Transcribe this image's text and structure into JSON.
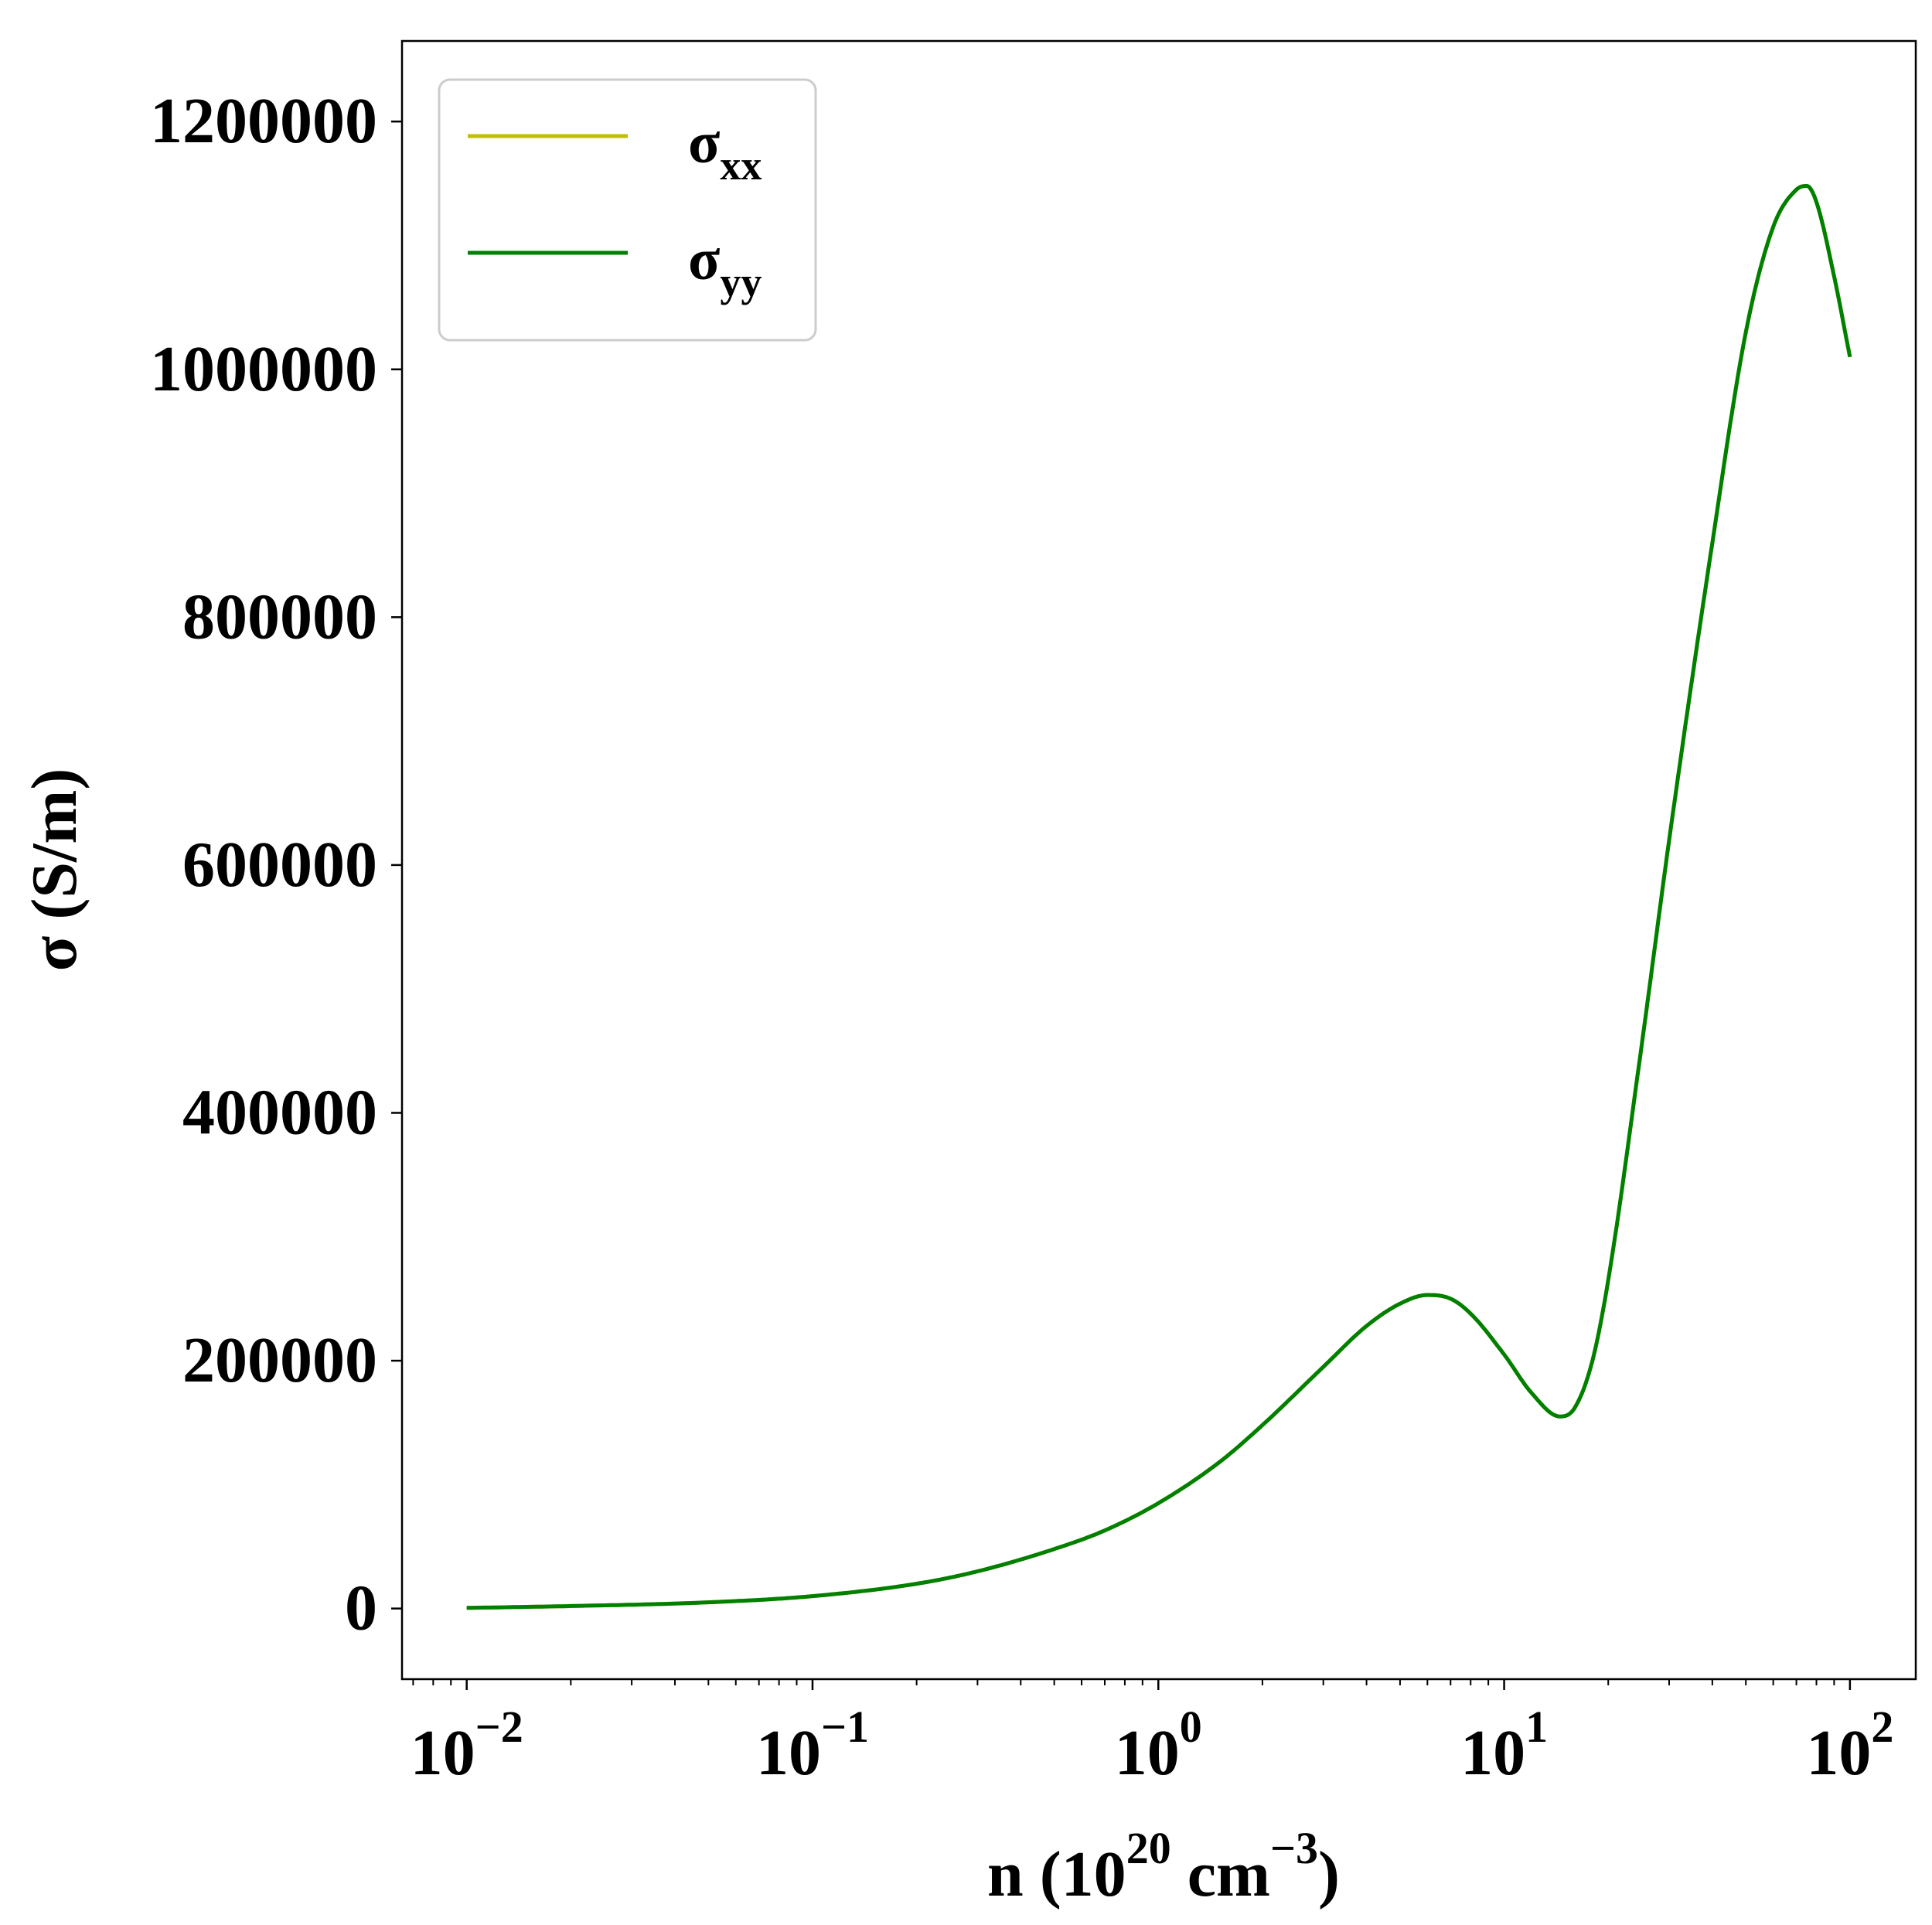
{
  "chart_data": {
    "type": "line",
    "xlabel": {
      "base": "n (10",
      "exp1": "20",
      "mid": " cm",
      "exp2": "−3",
      "tail": ")"
    },
    "ylabel": "σ (S/m)",
    "xscale": "log",
    "xlim": [
      0.0065,
      155
    ],
    "ylim": [
      -57000,
      1265000
    ],
    "xticks": [
      {
        "value": 0.01,
        "base": "10",
        "exp": "−2"
      },
      {
        "value": 0.1,
        "base": "10",
        "exp": "−1"
      },
      {
        "value": 1,
        "base": "10",
        "exp": "0"
      },
      {
        "value": 10,
        "base": "10",
        "exp": "1"
      },
      {
        "value": 100,
        "base": "10",
        "exp": "2"
      }
    ],
    "yticks": [
      0,
      200000,
      400000,
      600000,
      800000,
      1000000,
      1200000
    ],
    "ytick_labels": [
      "0",
      "200000",
      "400000",
      "600000",
      "800000",
      "1000000",
      "1200000"
    ],
    "grid": false,
    "legend_position": "top-left",
    "series": [
      {
        "name": "xx",
        "color": "#bfbf00",
        "x": [
          0.01,
          0.02,
          0.05,
          0.1,
          0.2,
          0.3,
          0.5,
          0.7,
          1.0,
          1.5,
          2.0,
          3.0,
          4.0,
          5.0,
          6.0,
          7.0,
          8.0,
          10.0,
          12.0,
          14.5,
          16.0,
          18.0,
          20.0,
          25.0,
          30.0,
          40.0,
          50.0,
          60.0,
          70.0,
          75.0,
          80.0,
          90.0,
          100.0
        ],
        "y": [
          500,
          2000,
          5000,
          10000,
          20000,
          30000,
          48000,
          63000,
          85000,
          118000,
          148000,
          195000,
          228000,
          246000,
          253000,
          250000,
          238000,
          205000,
          174000,
          155000,
          162000,
          200000,
          265000,
          455000,
          620000,
          860000,
          1030000,
          1115000,
          1145000,
          1148000,
          1135000,
          1075000,
          1010000
        ]
      },
      {
        "name": "yy",
        "color": "#008000",
        "x": [
          0.01,
          0.02,
          0.05,
          0.1,
          0.2,
          0.3,
          0.5,
          0.7,
          1.0,
          1.5,
          2.0,
          3.0,
          4.0,
          5.0,
          6.0,
          7.0,
          8.0,
          10.0,
          12.0,
          14.5,
          16.0,
          18.0,
          20.0,
          25.0,
          30.0,
          40.0,
          50.0,
          60.0,
          70.0,
          75.0,
          80.0,
          90.0,
          100.0
        ],
        "y": [
          500,
          2000,
          5000,
          10000,
          20000,
          30000,
          48000,
          63000,
          85000,
          118000,
          148000,
          195000,
          228000,
          246000,
          253000,
          250000,
          238000,
          205000,
          174000,
          155000,
          162000,
          200000,
          265000,
          455000,
          620000,
          860000,
          1030000,
          1115000,
          1145000,
          1148000,
          1135000,
          1075000,
          1010000
        ]
      }
    ]
  }
}
